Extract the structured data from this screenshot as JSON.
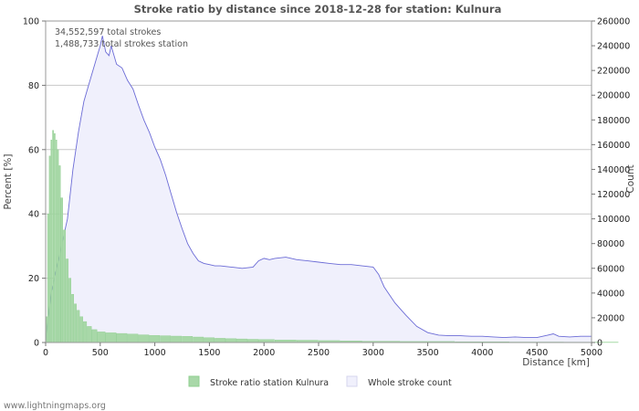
{
  "chart_data": {
    "type": "bar+area",
    "title": "Stroke ratio by distance since 2018-12-28 for station: Kulnura",
    "annotations": [
      "34,552,597 total strokes",
      "1,488,733 total strokes station"
    ],
    "xlabel": "Distance   [km]",
    "ylabel_left": "Percent   [%]",
    "ylabel_right": "Count",
    "xlim": [
      0,
      5000
    ],
    "ylim_left": [
      0,
      100
    ],
    "ylim_right": [
      0,
      260000
    ],
    "x_ticks": [
      0,
      500,
      1000,
      1500,
      2000,
      2500,
      3000,
      3500,
      4000,
      4500,
      5000
    ],
    "y_left_ticks": [
      0,
      20,
      40,
      60,
      80,
      100
    ],
    "y_right_ticks": [
      0,
      20000,
      40000,
      60000,
      80000,
      100000,
      120000,
      140000,
      160000,
      180000,
      200000,
      220000,
      240000,
      260000
    ],
    "grid": true,
    "series": [
      {
        "name": "Stroke ratio station Kulnura",
        "type": "bar",
        "axis": "left",
        "color": "#a8d8a8",
        "x": [
          10,
          25,
          40,
          55,
          70,
          85,
          100,
          115,
          130,
          150,
          175,
          200,
          225,
          250,
          275,
          300,
          330,
          360,
          400,
          450,
          500,
          600,
          700,
          800,
          900,
          1000,
          1100,
          1200,
          1300,
          1400,
          1500,
          1600,
          1700,
          1800,
          1900,
          2000,
          2200,
          2400,
          2600,
          2800,
          3000,
          3500,
          4000,
          4500,
          5000
        ],
        "values": [
          8,
          40,
          58,
          63,
          66,
          65,
          63,
          60,
          55,
          45,
          35,
          26,
          20,
          15,
          12,
          10,
          8,
          6.5,
          5,
          4,
          3.3,
          3,
          2.8,
          2.6,
          2.4,
          2.2,
          2.1,
          2,
          1.9,
          1.7,
          1.5,
          1.3,
          1.2,
          1.1,
          1.0,
          0.9,
          0.8,
          0.7,
          0.6,
          0.5,
          0.4,
          0.3,
          0.2,
          0.15,
          0.1
        ]
      },
      {
        "name": "Whole stroke count",
        "type": "area",
        "axis": "right",
        "color": "#f0f0fc",
        "line_color": "#6b6bd6",
        "x": [
          0,
          50,
          100,
          150,
          200,
          250,
          300,
          350,
          400,
          450,
          500,
          520,
          550,
          580,
          600,
          650,
          700,
          750,
          800,
          850,
          900,
          950,
          1000,
          1050,
          1100,
          1150,
          1200,
          1250,
          1300,
          1350,
          1400,
          1450,
          1500,
          1550,
          1600,
          1700,
          1800,
          1900,
          1950,
          2000,
          2050,
          2100,
          2200,
          2300,
          2400,
          2500,
          2600,
          2700,
          2800,
          2900,
          3000,
          3050,
          3100,
          3200,
          3300,
          3400,
          3500,
          3600,
          3700,
          3800,
          3900,
          4000,
          4100,
          4200,
          4300,
          4400,
          4500,
          4600,
          4650,
          4700,
          4800,
          4900,
          5000
        ],
        "values": [
          0,
          40000,
          60000,
          80000,
          100000,
          140000,
          170000,
          195000,
          210000,
          225000,
          240000,
          248000,
          235000,
          232000,
          240000,
          225000,
          222000,
          212000,
          205000,
          192000,
          180000,
          170000,
          158000,
          148000,
          135000,
          120000,
          105000,
          92000,
          80000,
          72000,
          66000,
          64000,
          63000,
          62000,
          62000,
          61000,
          60000,
          61000,
          66000,
          68000,
          67000,
          68000,
          69000,
          67000,
          66000,
          65000,
          64000,
          63000,
          63000,
          62000,
          61000,
          55000,
          45000,
          32000,
          22000,
          13000,
          8000,
          6000,
          5500,
          5500,
          5000,
          5000,
          4500,
          4000,
          4500,
          4000,
          4000,
          6000,
          7000,
          5000,
          4500,
          5000,
          5000
        ]
      }
    ],
    "legend": [
      {
        "label": "Stroke ratio station Kulnura",
        "color": "#a8d8a8"
      },
      {
        "label": "Whole stroke count",
        "color": "#f0f0fc"
      }
    ],
    "legend_position": "bottom",
    "footer": "www.lightningmaps.org"
  }
}
